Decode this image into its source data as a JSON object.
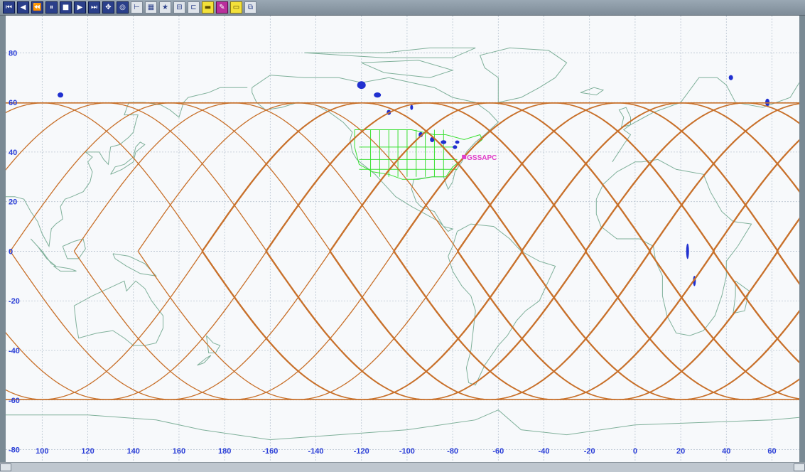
{
  "toolbar": {
    "buttons": [
      {
        "name": "goto-start-button",
        "glyph": "⏮",
        "style": "dark"
      },
      {
        "name": "step-back-button",
        "glyph": "◀",
        "style": "dark"
      },
      {
        "name": "rewind-button",
        "glyph": "⏪",
        "style": "dark"
      },
      {
        "name": "pause-button",
        "glyph": "⏸",
        "style": "dark"
      },
      {
        "name": "stop-button",
        "glyph": "■",
        "style": "dark"
      },
      {
        "name": "play-button",
        "glyph": "▶",
        "style": "dark"
      },
      {
        "name": "step-forward-button",
        "glyph": "⏭",
        "style": "dark"
      },
      {
        "name": "zoom-button",
        "glyph": "✥",
        "style": "dark"
      },
      {
        "name": "center-button",
        "glyph": "◎",
        "style": "dark"
      },
      {
        "name": "ruler-button",
        "glyph": "⊢",
        "style": "light"
      },
      {
        "name": "grid-button",
        "glyph": "▦",
        "style": "light"
      },
      {
        "name": "star-button",
        "glyph": "★",
        "style": "light"
      },
      {
        "name": "report-button",
        "glyph": "⊟",
        "style": "light"
      },
      {
        "name": "export-button",
        "glyph": "⊏",
        "style": "light"
      },
      {
        "name": "label-button",
        "glyph": "▬",
        "style": "yellow"
      },
      {
        "name": "color-button",
        "glyph": "✎",
        "style": "magenta"
      },
      {
        "name": "highlight-button",
        "glyph": "▭",
        "style": "yellow"
      },
      {
        "name": "tile-button",
        "glyph": "⧉",
        "style": "light"
      }
    ]
  },
  "map": {
    "lon_min": 80,
    "lon_max": 300,
    "lat_min": -90,
    "lat_max": 90,
    "grid_lon_step": 20,
    "grid_lat_step": 20,
    "lon_ticks": [
      {
        "lon": 100,
        "label": "100"
      },
      {
        "lon": 120,
        "label": "120"
      },
      {
        "lon": 140,
        "label": "140"
      },
      {
        "lon": 160,
        "label": "160"
      },
      {
        "lon": 180,
        "label": "180"
      },
      {
        "lon": 200,
        "label": "-160"
      },
      {
        "lon": 220,
        "label": "-140"
      },
      {
        "lon": 240,
        "label": "-120"
      },
      {
        "lon": 260,
        "label": "-100"
      },
      {
        "lon": 280,
        "label": "-80"
      },
      {
        "lon": 300,
        "label": "-60"
      },
      {
        "lon": 320,
        "label": "-40"
      },
      {
        "lon": 340,
        "label": "-20"
      },
      {
        "lon": 360,
        "label": "0"
      },
      {
        "lon": 380,
        "label": "20"
      },
      {
        "lon": 400,
        "label": "40"
      },
      {
        "lon": 420,
        "label": "60"
      }
    ],
    "lat_ticks": [
      {
        "lat": 80,
        "label": "80"
      },
      {
        "lat": 60,
        "label": "60"
      },
      {
        "lat": 40,
        "label": "40"
      },
      {
        "lat": 20,
        "label": "20"
      },
      {
        "lat": 0,
        "label": "0"
      },
      {
        "lat": -20,
        "label": "-20"
      },
      {
        "lat": -40,
        "label": "-40"
      },
      {
        "lat": -60,
        "label": "-60"
      },
      {
        "lat": -80,
        "label": "-80"
      }
    ],
    "station_label": "GSSAPC",
    "station_lon": 285,
    "station_lat": 38,
    "colors": {
      "grid": "#b8c4d0",
      "coast": "#7fb09a",
      "us_states": "#38e030",
      "tracks": "#c8702a",
      "ticks": "#2b3fd8",
      "station": "#e040c8",
      "lakes": "#2030d0"
    },
    "orbit": {
      "inclination": 65,
      "track_count": 22,
      "lon_spacing": 28
    }
  }
}
